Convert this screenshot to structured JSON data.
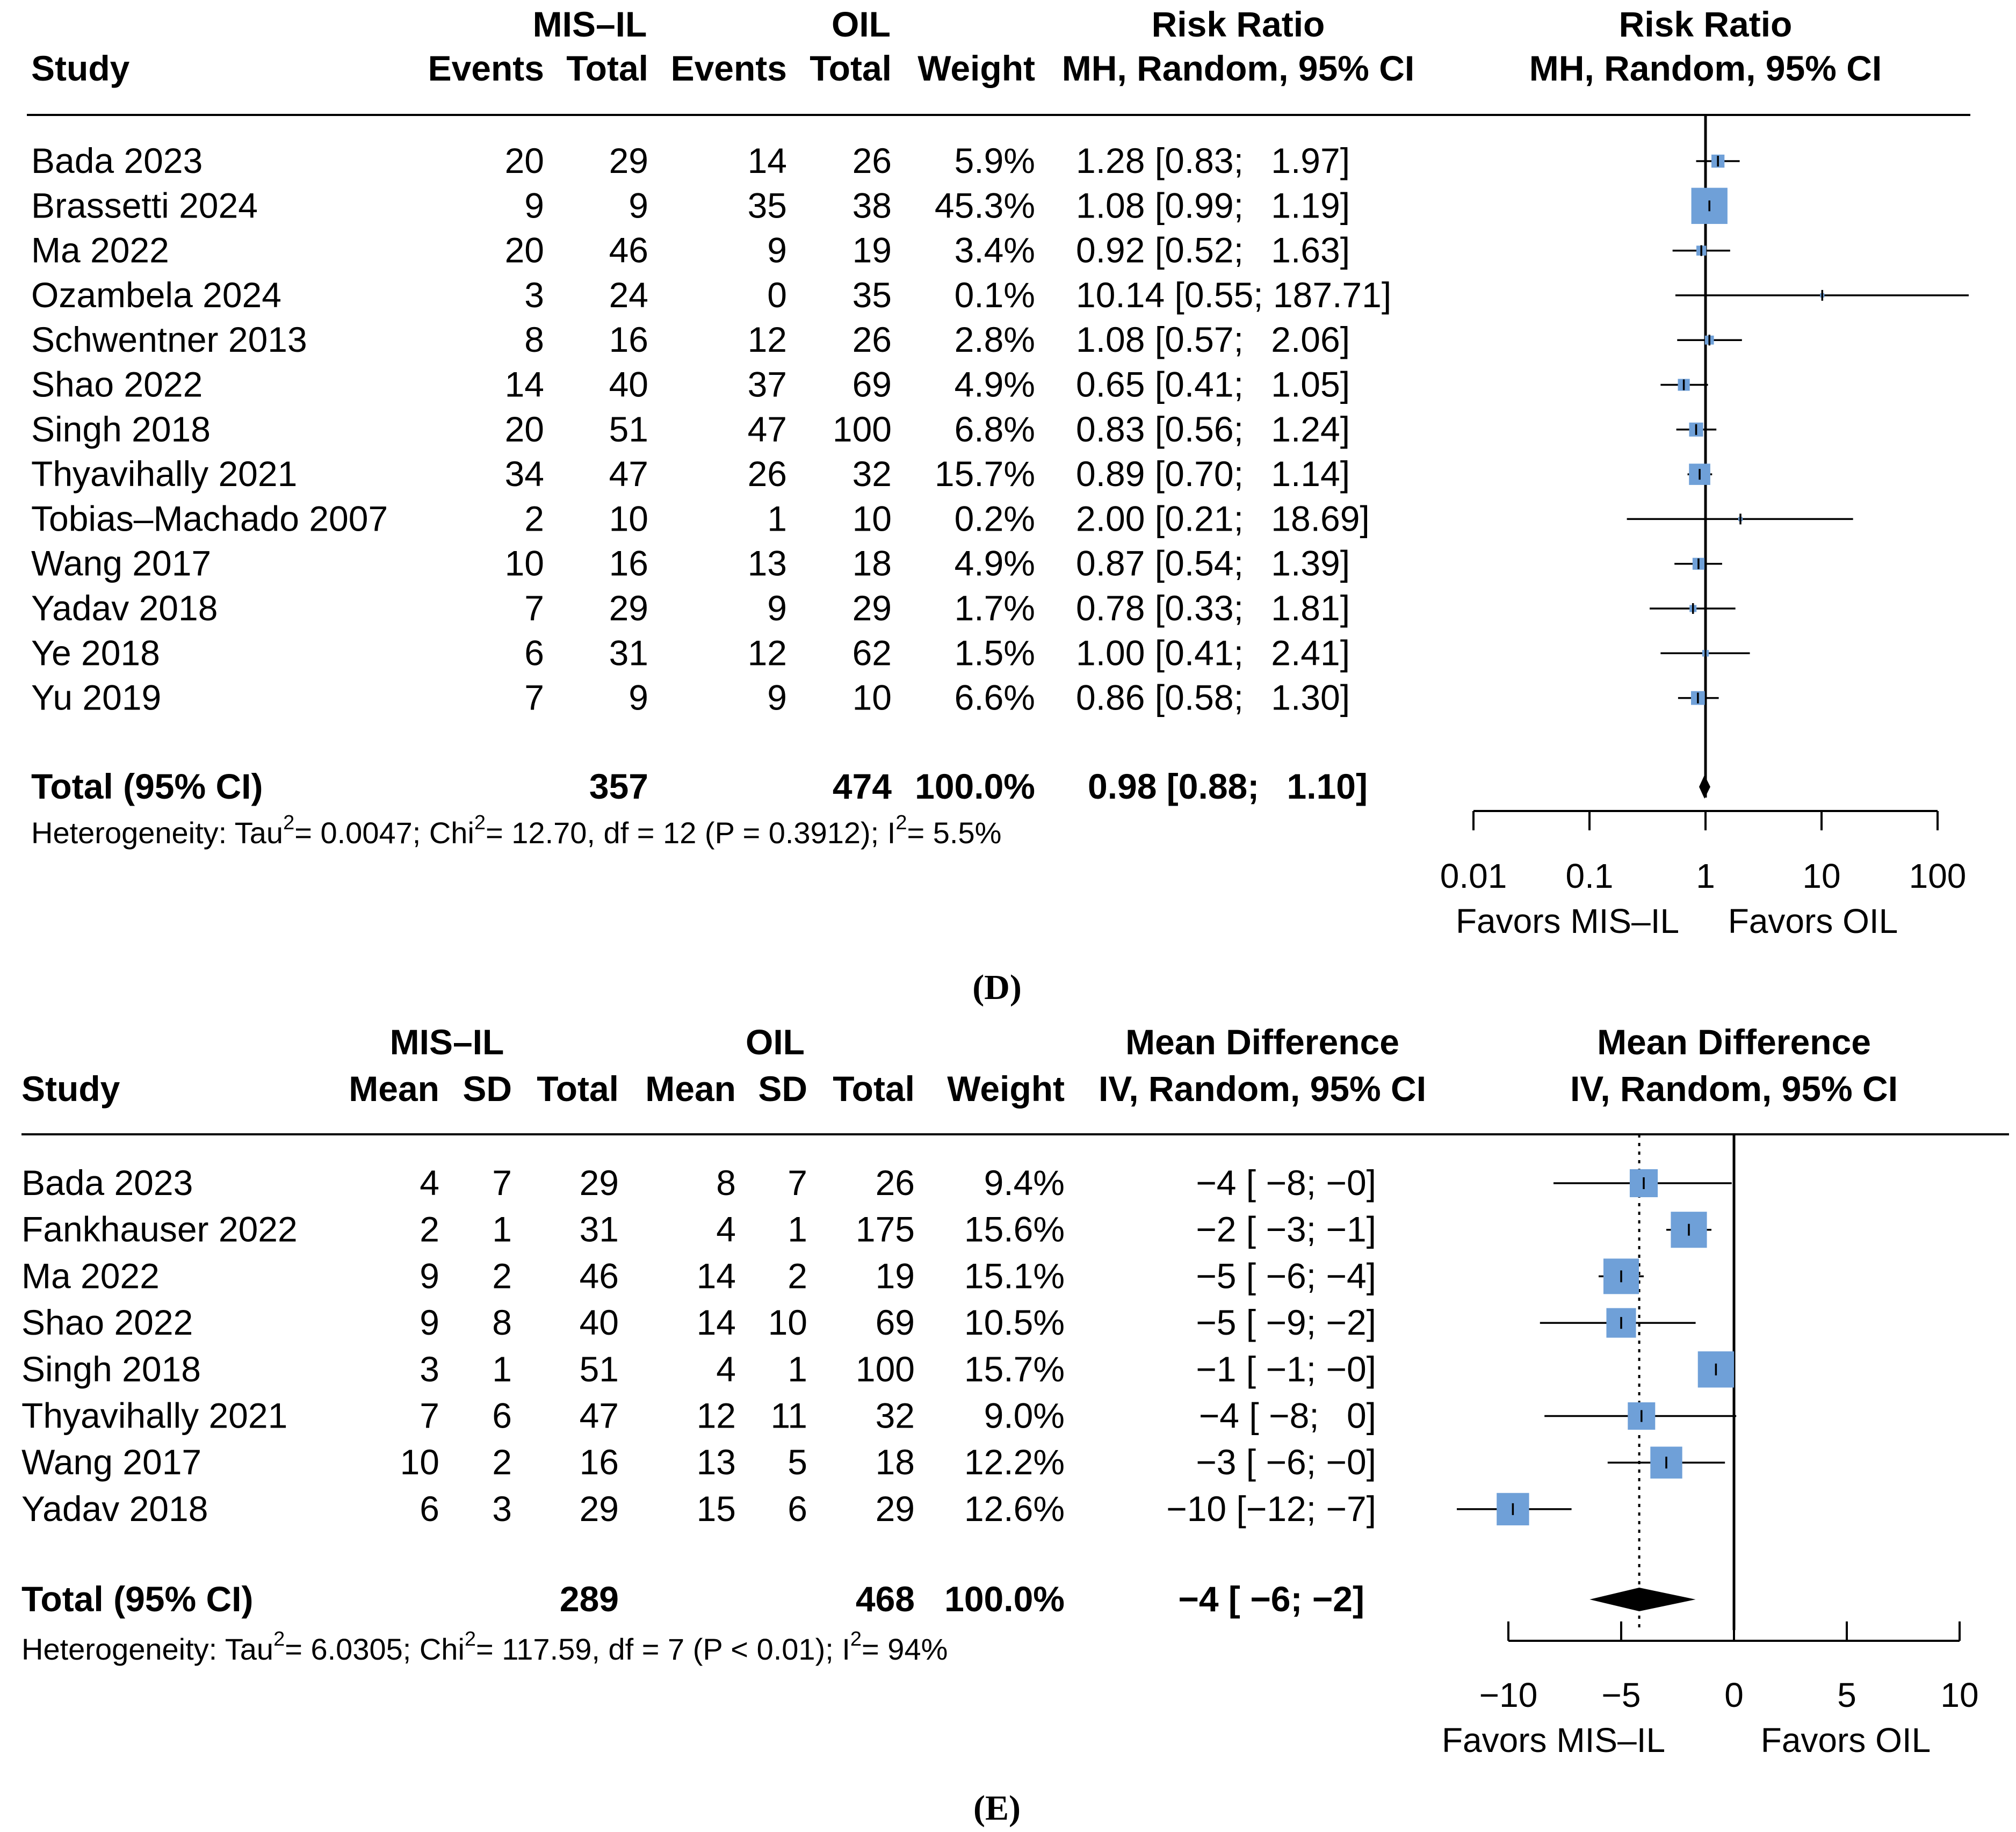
{
  "chart_data": [
    {
      "type": "forest",
      "panel": "(D)",
      "measure": "Risk Ratio",
      "method": "MH, Random, 95% CI",
      "header": {
        "study": "Study",
        "group1": "MIS–IL",
        "group2": "OIL",
        "events": "Events",
        "total": "Total",
        "weight": "Weight",
        "effect_title": "Risk Ratio",
        "effect_sub": "MH, Random, 95% CI",
        "plot_title": "Risk Ratio",
        "plot_sub": "MH, Random, 95% CI"
      },
      "columns": [
        "Study",
        "Events",
        "Total",
        "Events",
        "Total",
        "Weight",
        "Risk Ratio"
      ],
      "rows": [
        {
          "study": "Bada 2023",
          "e1": "20",
          "n1": "29",
          "e2": "14",
          "n2": "26",
          "weight": "5.9%",
          "ci_text": "1.28 [0.83;  1.97]",
          "est": 1.28,
          "lo": 0.83,
          "hi": 1.97,
          "w": 5.9
        },
        {
          "study": "Brassetti 2024",
          "e1": "9",
          "n1": "9",
          "e2": "35",
          "n2": "38",
          "weight": "45.3%",
          "ci_text": "1.08 [0.99;  1.19]",
          "est": 1.08,
          "lo": 0.99,
          "hi": 1.19,
          "w": 45.3
        },
        {
          "study": "Ma 2022",
          "e1": "20",
          "n1": "46",
          "e2": "9",
          "n2": "19",
          "weight": "3.4%",
          "ci_text": "0.92 [0.52;  1.63]",
          "est": 0.92,
          "lo": 0.52,
          "hi": 1.63,
          "w": 3.4
        },
        {
          "study": "Ozambela 2024",
          "e1": "3",
          "n1": "24",
          "e2": "0",
          "n2": "35",
          "weight": "0.1%",
          "ci_text": "10.14 [0.55; 187.71]",
          "est": 10.14,
          "lo": 0.55,
          "hi": 187.71,
          "w": 0.1
        },
        {
          "study": "Schwentner 2013",
          "e1": "8",
          "n1": "16",
          "e2": "12",
          "n2": "26",
          "weight": "2.8%",
          "ci_text": "1.08 [0.57;  2.06]",
          "est": 1.08,
          "lo": 0.57,
          "hi": 2.06,
          "w": 2.8
        },
        {
          "study": "Shao 2022",
          "e1": "14",
          "n1": "40",
          "e2": "37",
          "n2": "69",
          "weight": "4.9%",
          "ci_text": "0.65 [0.41;  1.05]",
          "est": 0.65,
          "lo": 0.41,
          "hi": 1.05,
          "w": 4.9
        },
        {
          "study": "Singh 2018",
          "e1": "20",
          "n1": "51",
          "e2": "47",
          "n2": "100",
          "weight": "6.8%",
          "ci_text": "0.83 [0.56;  1.24]",
          "est": 0.83,
          "lo": 0.56,
          "hi": 1.24,
          "w": 6.8
        },
        {
          "study": "Thyavihally 2021",
          "e1": "34",
          "n1": "47",
          "e2": "26",
          "n2": "32",
          "weight": "15.7%",
          "ci_text": "0.89 [0.70;  1.14]",
          "est": 0.89,
          "lo": 0.7,
          "hi": 1.14,
          "w": 15.7
        },
        {
          "study": "Tobias–Machado 2007",
          "e1": "2",
          "n1": "10",
          "e2": "1",
          "n2": "10",
          "weight": "0.2%",
          "ci_text": "2.00 [0.21;  18.69]",
          "est": 2.0,
          "lo": 0.21,
          "hi": 18.69,
          "w": 0.2
        },
        {
          "study": "Wang 2017",
          "e1": "10",
          "n1": "16",
          "e2": "13",
          "n2": "18",
          "weight": "4.9%",
          "ci_text": "0.87 [0.54;  1.39]",
          "est": 0.87,
          "lo": 0.54,
          "hi": 1.39,
          "w": 4.9
        },
        {
          "study": "Yadav 2018",
          "e1": "7",
          "n1": "29",
          "e2": "9",
          "n2": "29",
          "weight": "1.7%",
          "ci_text": "0.78 [0.33;  1.81]",
          "est": 0.78,
          "lo": 0.33,
          "hi": 1.81,
          "w": 1.7
        },
        {
          "study": "Ye 2018",
          "e1": "6",
          "n1": "31",
          "e2": "12",
          "n2": "62",
          "weight": "1.5%",
          "ci_text": "1.00 [0.41;  2.41]",
          "est": 1.0,
          "lo": 0.41,
          "hi": 2.41,
          "w": 1.5
        },
        {
          "study": "Yu 2019",
          "e1": "7",
          "n1": "9",
          "e2": "9",
          "n2": "10",
          "weight": "6.6%",
          "ci_text": "0.86 [0.58;  1.30]",
          "est": 0.86,
          "lo": 0.58,
          "hi": 1.3,
          "w": 6.6
        }
      ],
      "total": {
        "label": "Total (95% CI)",
        "n1": "357",
        "n2": "474",
        "weight": "100.0%",
        "ci_text": "0.98 [0.88;  1.10]",
        "est": 0.98,
        "lo": 0.88,
        "hi": 1.1
      },
      "heterogeneity": {
        "prefix": "Heterogeneity: Tau",
        "tau2": "= 0.0047; Chi",
        "chi2": "= 12.70, df = 12 (P = 0.3912); I",
        "i2": "= 5.5%",
        "sup": "2"
      },
      "axis": {
        "scale": "log",
        "xlim": [
          0.01,
          100
        ],
        "ticks": [
          "0.01",
          "0.1",
          "1",
          "10",
          "100"
        ],
        "tick_values": [
          0.01,
          0.1,
          1,
          10,
          100
        ],
        "ref": 1
      },
      "favors": {
        "left": "Favors MIS–IL",
        "right": "Favors OIL"
      },
      "colors": {
        "box": "#6fa0d8",
        "line": "#000000"
      }
    },
    {
      "type": "forest",
      "panel": "(E)",
      "measure": "Mean Difference",
      "method": "IV, Random, 95% CI",
      "header": {
        "study": "Study",
        "group1": "MIS–IL",
        "group2": "OIL",
        "mean": "Mean",
        "sd": "SD",
        "total": "Total",
        "weight": "Weight",
        "effect_title": "Mean Difference",
        "effect_sub": "IV, Random, 95% CI",
        "plot_title": "Mean Difference",
        "plot_sub": "IV, Random, 95% CI"
      },
      "columns": [
        "Study",
        "Mean",
        "SD",
        "Total",
        "Mean",
        "SD",
        "Total",
        "Weight",
        "Mean Difference"
      ],
      "rows": [
        {
          "study": "Bada 2023",
          "m1": "4",
          "sd1": "7",
          "n1": "29",
          "m2": "8",
          "sd2": "7",
          "n2": "26",
          "weight": "9.4%",
          "ci_text": "−4 [ −8; −0]",
          "est": -4,
          "lo": -8,
          "hi": -0.1,
          "w": 9.4
        },
        {
          "study": "Fankhauser 2022",
          "m1": "2",
          "sd1": "1",
          "n1": "31",
          "m2": "4",
          "sd2": "1",
          "n2": "175",
          "weight": "15.6%",
          "ci_text": "−2 [ −3; −1]",
          "est": -2,
          "lo": -3,
          "hi": -1,
          "w": 15.6
        },
        {
          "study": "Ma 2022",
          "m1": "9",
          "sd1": "2",
          "n1": "46",
          "m2": "14",
          "sd2": "2",
          "n2": "19",
          "weight": "15.1%",
          "ci_text": "−5 [ −6; −4]",
          "est": -5,
          "lo": -6,
          "hi": -4,
          "w": 15.1
        },
        {
          "study": "Shao 2022",
          "m1": "9",
          "sd1": "8",
          "n1": "40",
          "m2": "14",
          "sd2": "10",
          "n2": "69",
          "weight": "10.5%",
          "ci_text": "−5 [ −9; −2]",
          "est": -5,
          "lo": -8.6,
          "hi": -1.7,
          "w": 10.5
        },
        {
          "study": "Singh 2018",
          "m1": "3",
          "sd1": "1",
          "n1": "51",
          "m2": "4",
          "sd2": "1",
          "n2": "100",
          "weight": "15.7%",
          "ci_text": "−1 [ −1; −0]",
          "est": -0.8,
          "lo": -1.3,
          "hi": -0.3,
          "w": 15.7
        },
        {
          "study": "Thyavihally 2021",
          "m1": "7",
          "sd1": "6",
          "n1": "47",
          "m2": "12",
          "sd2": "11",
          "n2": "32",
          "weight": "9.0%",
          "ci_text": "−4 [ −8;  0]",
          "est": -4.1,
          "lo": -8.4,
          "hi": 0.1,
          "w": 9.0
        },
        {
          "study": "Wang 2017",
          "m1": "10",
          "sd1": "2",
          "n1": "16",
          "m2": "13",
          "sd2": "5",
          "n2": "18",
          "weight": "12.2%",
          "ci_text": "−3 [ −6; −0]",
          "est": -3,
          "lo": -5.6,
          "hi": -0.4,
          "w": 12.2
        },
        {
          "study": "Yadav 2018",
          "m1": "6",
          "sd1": "3",
          "n1": "29",
          "m2": "15",
          "sd2": "6",
          "n2": "29",
          "weight": "12.6%",
          "ci_text": "−10 [−12; −7]",
          "est": -9.8,
          "lo": -12.4,
          "hi": -7.2,
          "w": 12.6
        }
      ],
      "total": {
        "label": "Total (95% CI)",
        "n1": "289",
        "n2": "468",
        "weight": "100.0%",
        "ci_text": "−4 [ −6; −2]",
        "est": -4.2,
        "lo": -6.4,
        "hi": -1.7
      },
      "heterogeneity": {
        "prefix": "Heterogeneity: Tau",
        "tau2": "= 6.0305; Chi",
        "chi2": "= 117.59, df = 7 (P < 0.01); I",
        "i2": "= 94%",
        "sup": "2"
      },
      "axis": {
        "scale": "linear",
        "xlim": [
          -10,
          10
        ],
        "ticks": [
          "−10",
          "−5",
          "0",
          "5",
          "10"
        ],
        "tick_values": [
          -10,
          -5,
          0,
          5,
          10
        ],
        "ref": 0
      },
      "favors": {
        "left": "Favors MIS–IL",
        "right": "Favors OIL"
      },
      "colors": {
        "box": "#6fa0d8",
        "line": "#000000"
      }
    }
  ]
}
